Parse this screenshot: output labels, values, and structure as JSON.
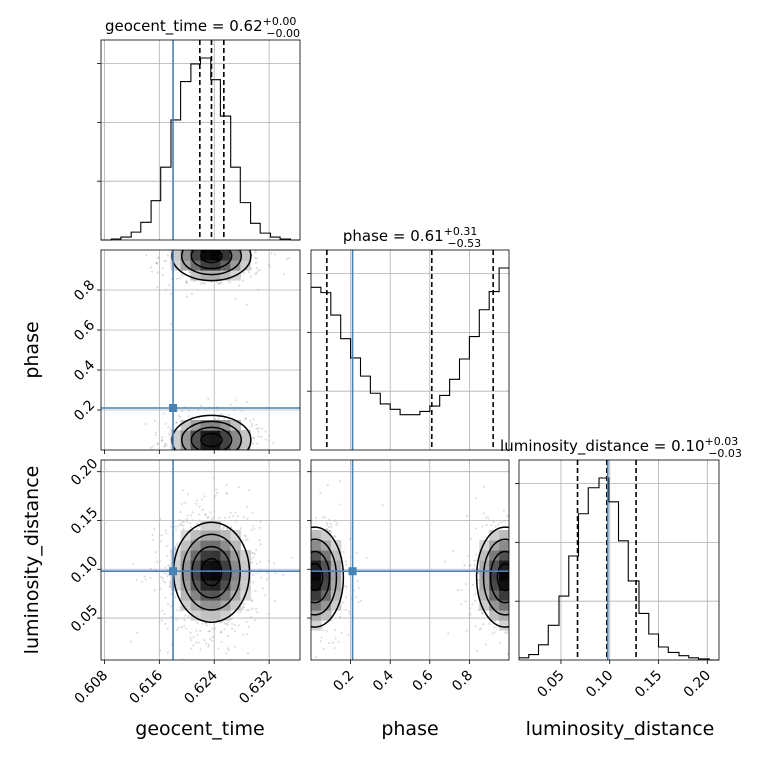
{
  "chart_data": {
    "type": "corner",
    "parameters": [
      "geocent_time",
      "phase",
      "luminosity_distance"
    ],
    "truths": [
      0.618,
      0.21,
      0.098
    ],
    "truth_color": "#4682b4",
    "titles": [
      {
        "param": "geocent_time",
        "label": "geocent_time = 0.62",
        "plus": "+0.00",
        "minus": "−0.00"
      },
      {
        "param": "phase",
        "label": "phase = 0.61",
        "plus": "+0.31",
        "minus": "−0.53"
      },
      {
        "param": "luminosity_distance",
        "label": "luminosity_distance = 0.10",
        "plus": "+0.03",
        "minus": "−0.03"
      }
    ],
    "ranges": [
      [
        0.6075,
        0.6365
      ],
      [
        0.0,
        1.0
      ],
      [
        0.007,
        0.212
      ]
    ],
    "ticks": [
      {
        "values": [
          0.608,
          0.616,
          0.624,
          0.632
        ],
        "labels": [
          "0.608",
          "0.616",
          "0.624",
          "0.632"
        ]
      },
      {
        "values": [
          0.2,
          0.4,
          0.6,
          0.8
        ],
        "labels": [
          "0.2",
          "0.4",
          "0.6",
          "0.8"
        ]
      },
      {
        "values": [
          0.05,
          0.1,
          0.15,
          0.2
        ],
        "labels": [
          "0.05",
          "0.10",
          "0.15",
          "0.20"
        ]
      }
    ],
    "ytick_labels": {
      "phase": [
        "0.2",
        "0.4",
        "0.6",
        "0.8"
      ],
      "luminosity_distance": [
        "0.05",
        "0.10",
        "0.15",
        "0.20"
      ]
    },
    "histograms": [
      {
        "param": "geocent_time",
        "quantiles": [
          0.6219,
          0.6236,
          0.6254
        ],
        "bin_edges": [
          0.6075,
          0.609,
          0.6104,
          0.6119,
          0.6133,
          0.6148,
          0.6162,
          0.6177,
          0.6191,
          0.6206,
          0.622,
          0.6235,
          0.6249,
          0.6264,
          0.6278,
          0.6293,
          0.6307,
          0.6322,
          0.6336,
          0.6351,
          0.6365
        ],
        "counts": [
          0,
          1,
          3,
          8,
          18,
          40,
          74,
          122,
          161,
          179,
          185,
          163,
          126,
          74,
          38,
          17,
          7,
          3,
          1,
          0
        ]
      },
      {
        "param": "phase",
        "quantiles": [
          0.08,
          0.61,
          0.92
        ],
        "bin_edges": [
          0.0,
          0.05,
          0.1,
          0.15,
          0.2,
          0.25,
          0.3,
          0.35,
          0.4,
          0.45,
          0.5,
          0.55,
          0.6,
          0.65,
          0.7,
          0.75,
          0.8,
          0.85,
          0.9,
          0.95,
          1.0
        ],
        "counts": [
          152,
          147,
          126,
          104,
          86,
          69,
          53,
          43,
          38,
          33,
          33,
          36,
          41,
          51,
          66,
          85,
          106,
          131,
          148,
          170
        ]
      },
      {
        "param": "luminosity_distance",
        "quantiles": [
          0.067,
          0.097,
          0.127
        ],
        "bin_edges": [
          0.007,
          0.017,
          0.027,
          0.037,
          0.048,
          0.058,
          0.068,
          0.078,
          0.089,
          0.099,
          0.109,
          0.119,
          0.13,
          0.14,
          0.15,
          0.16,
          0.171,
          0.181,
          0.191,
          0.202,
          0.212
        ],
        "counts": [
          2,
          5,
          14,
          32,
          59,
          96,
          135,
          159,
          168,
          146,
          110,
          73,
          43,
          24,
          12,
          7,
          4,
          2,
          1,
          0
        ]
      }
    ],
    "density_2d": [
      {
        "x": "geocent_time",
        "y": "phase",
        "modes": [
          {
            "x": 0.6236,
            "y": 0.05,
            "sx": 0.0028,
            "sy": 0.06
          },
          {
            "x": 0.6236,
            "y": 0.97,
            "sx": 0.0028,
            "sy": 0.06
          }
        ]
      },
      {
        "x": "geocent_time",
        "y": "luminosity_distance",
        "modes": [
          {
            "x": 0.6236,
            "y": 0.097,
            "sx": 0.0027,
            "sy": 0.025
          }
        ]
      },
      {
        "x": "phase",
        "y": "luminosity_distance",
        "modes": [
          {
            "x": 0.02,
            "y": 0.092,
            "sx": 0.07,
            "sy": 0.025
          },
          {
            "x": 0.98,
            "y": 0.092,
            "sx": 0.07,
            "sy": 0.025
          }
        ]
      }
    ]
  }
}
